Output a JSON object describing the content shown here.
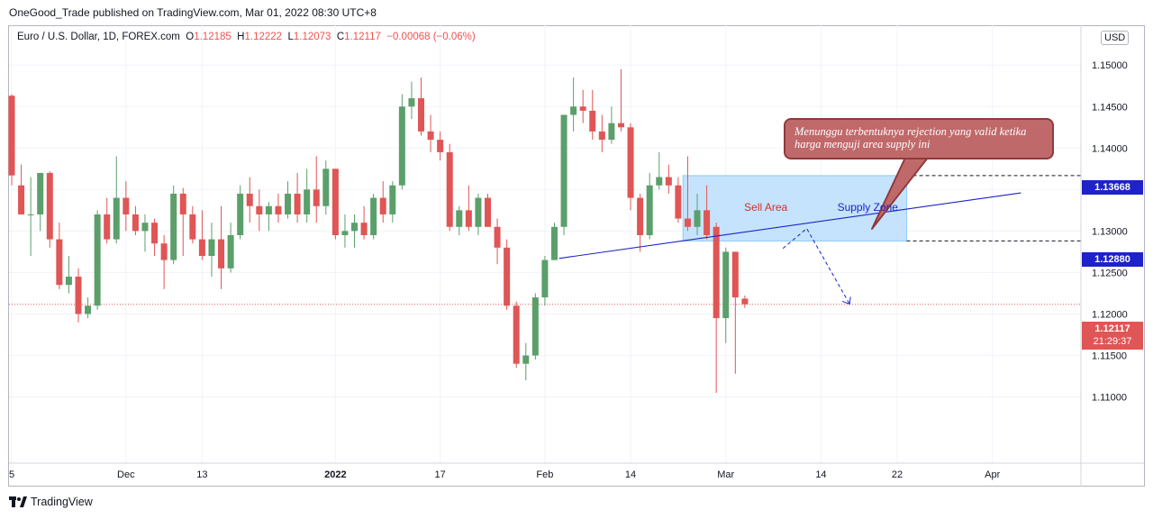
{
  "header": {
    "published": "OneGood_Trade published on TradingView.com, Mar 01, 2022 08:30 UTC+8"
  },
  "legend": {
    "symbol": "Euro / U.S. Dollar, 1D, FOREX.com",
    "o_label": "O",
    "o": "1.12185",
    "h_label": "H",
    "h": "1.12222",
    "l_label": "L",
    "l": "1.12073",
    "c_label": "C",
    "c": "1.12117",
    "change": "−0.00068 (−0.06%)"
  },
  "currency": "USD",
  "footer": {
    "brand": "TradingView"
  },
  "annotations": {
    "callout": "Menunggu terbentuknya rejection yang valid ketika harga menguji area supply ini",
    "sell_area": "Sell Area",
    "supply_zone": "Supply Zone"
  },
  "price_labels": {
    "zone_top": "1.13668",
    "zone_bottom": "1.12880",
    "last": "1.12117",
    "countdown": "21:29:37"
  },
  "colors": {
    "up": "#26a69a",
    "up_fill": "#5b9f6b",
    "down": "#e05555",
    "zone": "#bbdefb",
    "trendline": "#1e22c8",
    "callout": "#c0696a"
  },
  "chart_data": {
    "type": "candlestick",
    "symbol": "EURUSD",
    "timeframe": "1D",
    "y_axis": {
      "ticks": [
        "1.15000",
        "1.14500",
        "1.14000",
        "1.13500",
        "1.13000",
        "1.12500",
        "1.12000",
        "1.11500",
        "1.11000"
      ],
      "ylim": [
        1.103,
        1.1535
      ]
    },
    "x_axis": {
      "ticks": [
        {
          "label": "5",
          "i": 0
        },
        {
          "label": "Dec",
          "i": 12
        },
        {
          "label": "13",
          "i": 20
        },
        {
          "label": "2022",
          "i": 34,
          "bold": true
        },
        {
          "label": "17",
          "i": 45
        },
        {
          "label": "Feb",
          "i": 56
        },
        {
          "label": "14",
          "i": 65
        },
        {
          "label": "Mar",
          "i": 75
        },
        {
          "label": "14",
          "i": 85
        },
        {
          "label": "22",
          "i": 93
        },
        {
          "label": "Apr",
          "i": 103
        }
      ]
    },
    "supply_zone": {
      "top": 1.13668,
      "bottom": 1.1288,
      "start_i": 70.5,
      "end_i": 94
    },
    "trendline": {
      "i1": 57.5,
      "p1": 1.1267,
      "i2": 106,
      "p2": 1.1346
    },
    "projection": [
      {
        "i": 81,
        "p": 1.1279
      },
      {
        "i": 83.5,
        "p": 1.1303
      },
      {
        "i": 88,
        "p": 1.1212
      }
    ],
    "last_price": 1.12117,
    "candles": [
      {
        "o": 1.1463,
        "h": 1.1465,
        "l": 1.1355,
        "c": 1.1367
      },
      {
        "o": 1.1355,
        "h": 1.138,
        "l": 1.132,
        "c": 1.132
      },
      {
        "o": 1.132,
        "h": 1.1365,
        "l": 1.127,
        "c": 1.132
      },
      {
        "o": 1.132,
        "h": 1.137,
        "l": 1.13,
        "c": 1.137
      },
      {
        "o": 1.137,
        "h": 1.1372,
        "l": 1.128,
        "c": 1.129
      },
      {
        "o": 1.129,
        "h": 1.131,
        "l": 1.123,
        "c": 1.1235
      },
      {
        "o": 1.1235,
        "h": 1.127,
        "l": 1.1225,
        "c": 1.1245
      },
      {
        "o": 1.1245,
        "h": 1.1255,
        "l": 1.119,
        "c": 1.12
      },
      {
        "o": 1.12,
        "h": 1.122,
        "l": 1.1195,
        "c": 1.121
      },
      {
        "o": 1.121,
        "h": 1.1325,
        "l": 1.1205,
        "c": 1.132
      },
      {
        "o": 1.132,
        "h": 1.134,
        "l": 1.1285,
        "c": 1.129
      },
      {
        "o": 1.129,
        "h": 1.139,
        "l": 1.1285,
        "c": 1.134
      },
      {
        "o": 1.134,
        "h": 1.136,
        "l": 1.13,
        "c": 1.132
      },
      {
        "o": 1.132,
        "h": 1.133,
        "l": 1.1295,
        "c": 1.13
      },
      {
        "o": 1.13,
        "h": 1.132,
        "l": 1.1275,
        "c": 1.131
      },
      {
        "o": 1.131,
        "h": 1.1315,
        "l": 1.127,
        "c": 1.1285
      },
      {
        "o": 1.1285,
        "h": 1.1295,
        "l": 1.123,
        "c": 1.1265
      },
      {
        "o": 1.1265,
        "h": 1.1355,
        "l": 1.126,
        "c": 1.1345
      },
      {
        "o": 1.1345,
        "h": 1.1352,
        "l": 1.127,
        "c": 1.132
      },
      {
        "o": 1.132,
        "h": 1.133,
        "l": 1.1285,
        "c": 1.129
      },
      {
        "o": 1.129,
        "h": 1.1325,
        "l": 1.1265,
        "c": 1.127
      },
      {
        "o": 1.127,
        "h": 1.131,
        "l": 1.1245,
        "c": 1.129
      },
      {
        "o": 1.129,
        "h": 1.133,
        "l": 1.123,
        "c": 1.1255
      },
      {
        "o": 1.1255,
        "h": 1.131,
        "l": 1.125,
        "c": 1.1295
      },
      {
        "o": 1.1295,
        "h": 1.1355,
        "l": 1.129,
        "c": 1.1345
      },
      {
        "o": 1.1345,
        "h": 1.1365,
        "l": 1.131,
        "c": 1.133
      },
      {
        "o": 1.133,
        "h": 1.135,
        "l": 1.13,
        "c": 1.132
      },
      {
        "o": 1.132,
        "h": 1.1335,
        "l": 1.13,
        "c": 1.133
      },
      {
        "o": 1.133,
        "h": 1.1345,
        "l": 1.131,
        "c": 1.132
      },
      {
        "o": 1.132,
        "h": 1.136,
        "l": 1.1315,
        "c": 1.1345
      },
      {
        "o": 1.1345,
        "h": 1.137,
        "l": 1.131,
        "c": 1.132
      },
      {
        "o": 1.132,
        "h": 1.1375,
        "l": 1.131,
        "c": 1.135
      },
      {
        "o": 1.135,
        "h": 1.139,
        "l": 1.131,
        "c": 1.133
      },
      {
        "o": 1.133,
        "h": 1.1385,
        "l": 1.132,
        "c": 1.1375
      },
      {
        "o": 1.1375,
        "h": 1.1375,
        "l": 1.129,
        "c": 1.1295
      },
      {
        "o": 1.1295,
        "h": 1.132,
        "l": 1.128,
        "c": 1.13
      },
      {
        "o": 1.13,
        "h": 1.132,
        "l": 1.128,
        "c": 1.131
      },
      {
        "o": 1.131,
        "h": 1.133,
        "l": 1.129,
        "c": 1.1295
      },
      {
        "o": 1.1295,
        "h": 1.1345,
        "l": 1.129,
        "c": 1.134
      },
      {
        "o": 1.134,
        "h": 1.136,
        "l": 1.131,
        "c": 1.132
      },
      {
        "o": 1.132,
        "h": 1.136,
        "l": 1.131,
        "c": 1.1355
      },
      {
        "o": 1.1355,
        "h": 1.1465,
        "l": 1.135,
        "c": 1.145
      },
      {
        "o": 1.145,
        "h": 1.148,
        "l": 1.1435,
        "c": 1.146
      },
      {
        "o": 1.146,
        "h": 1.1485,
        "l": 1.1415,
        "c": 1.142
      },
      {
        "o": 1.142,
        "h": 1.144,
        "l": 1.1395,
        "c": 1.141
      },
      {
        "o": 1.141,
        "h": 1.142,
        "l": 1.1385,
        "c": 1.1395
      },
      {
        "o": 1.1395,
        "h": 1.1405,
        "l": 1.13,
        "c": 1.1305
      },
      {
        "o": 1.1305,
        "h": 1.133,
        "l": 1.1295,
        "c": 1.1325
      },
      {
        "o": 1.1325,
        "h": 1.1355,
        "l": 1.13,
        "c": 1.1305
      },
      {
        "o": 1.1305,
        "h": 1.1345,
        "l": 1.1295,
        "c": 1.134
      },
      {
        "o": 1.134,
        "h": 1.1345,
        "l": 1.1305,
        "c": 1.1305
      },
      {
        "o": 1.1305,
        "h": 1.1315,
        "l": 1.126,
        "c": 1.128
      },
      {
        "o": 1.128,
        "h": 1.129,
        "l": 1.1205,
        "c": 1.121
      },
      {
        "o": 1.121,
        "h": 1.1215,
        "l": 1.1135,
        "c": 1.114
      },
      {
        "o": 1.114,
        "h": 1.1165,
        "l": 1.112,
        "c": 1.115
      },
      {
        "o": 1.115,
        "h": 1.1225,
        "l": 1.1145,
        "c": 1.122
      },
      {
        "o": 1.122,
        "h": 1.127,
        "l": 1.121,
        "c": 1.1265
      },
      {
        "o": 1.1265,
        "h": 1.131,
        "l": 1.1265,
        "c": 1.1305
      },
      {
        "o": 1.1305,
        "h": 1.144,
        "l": 1.1295,
        "c": 1.144
      },
      {
        "o": 1.144,
        "h": 1.1485,
        "l": 1.142,
        "c": 1.145
      },
      {
        "o": 1.145,
        "h": 1.147,
        "l": 1.143,
        "c": 1.1445
      },
      {
        "o": 1.1445,
        "h": 1.147,
        "l": 1.141,
        "c": 1.142
      },
      {
        "o": 1.142,
        "h": 1.144,
        "l": 1.1395,
        "c": 1.141
      },
      {
        "o": 1.141,
        "h": 1.145,
        "l": 1.1405,
        "c": 1.143
      },
      {
        "o": 1.143,
        "h": 1.1495,
        "l": 1.142,
        "c": 1.1425
      },
      {
        "o": 1.1425,
        "h": 1.143,
        "l": 1.1325,
        "c": 1.134
      },
      {
        "o": 1.134,
        "h": 1.1345,
        "l": 1.1275,
        "c": 1.1295
      },
      {
        "o": 1.1295,
        "h": 1.137,
        "l": 1.129,
        "c": 1.1355
      },
      {
        "o": 1.1355,
        "h": 1.1395,
        "l": 1.135,
        "c": 1.1365
      },
      {
        "o": 1.1365,
        "h": 1.138,
        "l": 1.1345,
        "c": 1.1355
      },
      {
        "o": 1.1355,
        "h": 1.1365,
        "l": 1.131,
        "c": 1.1315
      },
      {
        "o": 1.1315,
        "h": 1.139,
        "l": 1.13,
        "c": 1.1305
      },
      {
        "o": 1.1305,
        "h": 1.1345,
        "l": 1.1295,
        "c": 1.1325
      },
      {
        "o": 1.1325,
        "h": 1.1355,
        "l": 1.129,
        "c": 1.1295
      },
      {
        "o": 1.1305,
        "h": 1.131,
        "l": 1.1105,
        "c": 1.1195
      },
      {
        "o": 1.1195,
        "h": 1.128,
        "l": 1.1165,
        "c": 1.1275
      },
      {
        "o": 1.1275,
        "h": 1.1275,
        "l": 1.1128,
        "c": 1.122
      },
      {
        "o": 1.12185,
        "h": 1.12222,
        "l": 1.12073,
        "c": 1.12117
      }
    ]
  }
}
